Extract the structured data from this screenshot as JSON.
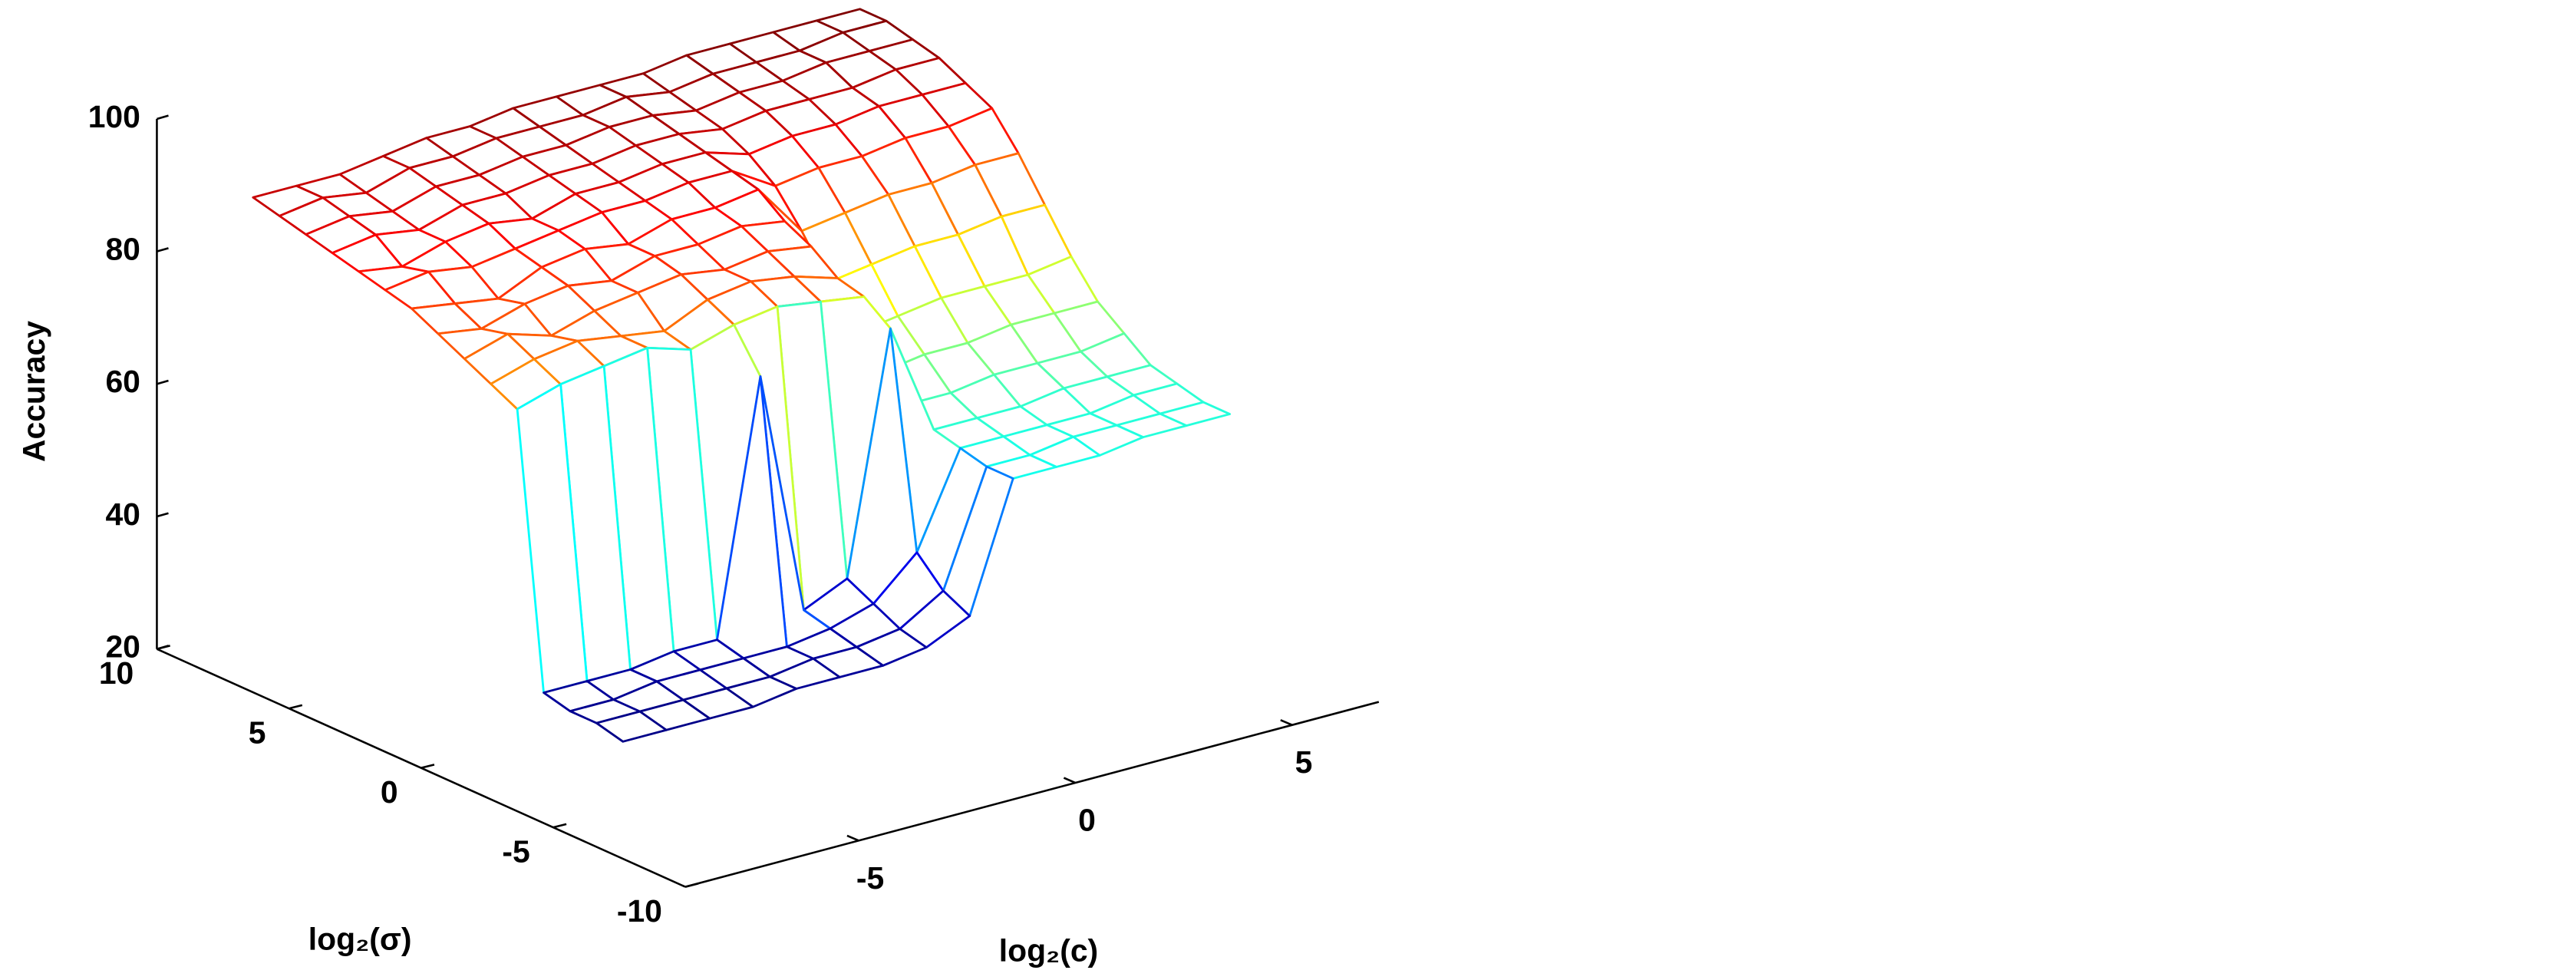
{
  "chart_data": {
    "type": "surface",
    "style": "mesh",
    "colormap": "jet",
    "xlabel": "log₂(c)",
    "ylabel": "log₂(σ)",
    "zlabel": "Accuracy",
    "x": [
      -8,
      -7,
      -6,
      -5,
      -4,
      -3,
      -2,
      -1,
      0,
      1,
      2,
      3,
      4,
      5,
      6
    ],
    "y": [
      -6,
      -5,
      -4,
      -3,
      -2,
      -1,
      0,
      1,
      2,
      3,
      4,
      5,
      6,
      7,
      8
    ],
    "z": [
      [
        33,
        33,
        33,
        33,
        34,
        34,
        34,
        35,
        38,
        57,
        57,
        57,
        58,
        58,
        58
      ],
      [
        34,
        34,
        34,
        34,
        34,
        35,
        35,
        36,
        40,
        57,
        57,
        58,
        58,
        58,
        58
      ],
      [
        34,
        34,
        35,
        35,
        35,
        35,
        36,
        38,
        44,
        58,
        58,
        58,
        58,
        59,
        59
      ],
      [
        35,
        35,
        35,
        36,
        36,
        74,
        37,
        40,
        76,
        59,
        59,
        59,
        60,
        60,
        60
      ],
      [
        76,
        78,
        79,
        80,
        78,
        80,
        81,
        80,
        79,
        61,
        61,
        62,
        62,
        62,
        63
      ],
      [
        78,
        80,
        81,
        80,
        79,
        82,
        83,
        82,
        80,
        64,
        65,
        65,
        66,
        66,
        66
      ],
      [
        80,
        82,
        80,
        82,
        83,
        84,
        83,
        84,
        83,
        68,
        69,
        70,
        70,
        70,
        71
      ],
      [
        82,
        81,
        83,
        84,
        83,
        85,
        85,
        86,
        85,
        74,
        75,
        76,
        76,
        77,
        77
      ],
      [
        84,
        83,
        82,
        85,
        86,
        85,
        87,
        87,
        88,
        80,
        81,
        82,
        82,
        83,
        83
      ],
      [
        85,
        86,
        85,
        86,
        87,
        88,
        88,
        89,
        89,
        85,
        86,
        86,
        87,
        87,
        88
      ],
      [
        86,
        85,
        87,
        88,
        87,
        89,
        89,
        90,
        90,
        88,
        89,
        89,
        90,
        90,
        90
      ],
      [
        87,
        88,
        87,
        89,
        89,
        90,
        90,
        91,
        91,
        90,
        91,
        91,
        91,
        92,
        92
      ],
      [
        88,
        89,
        88,
        90,
        90,
        91,
        91,
        92,
        92,
        91,
        92,
        92,
        93,
        93,
        93
      ],
      [
        89,
        90,
        89,
        91,
        91,
        92,
        92,
        92,
        93,
        92,
        93,
        93,
        93,
        94,
        94
      ],
      [
        90,
        90,
        90,
        91,
        92,
        92,
        93,
        93,
        93,
        93,
        94,
        94,
        94,
        94,
        94
      ]
    ],
    "xlim": [
      -9,
      7
    ],
    "xticks": [
      -5,
      0,
      5
    ],
    "ylim": [
      -10,
      10
    ],
    "yticks": [
      -10,
      -5,
      0,
      5,
      10
    ],
    "zlim": [
      20,
      100
    ],
    "zticks": [
      20,
      40,
      60,
      80,
      100
    ]
  }
}
